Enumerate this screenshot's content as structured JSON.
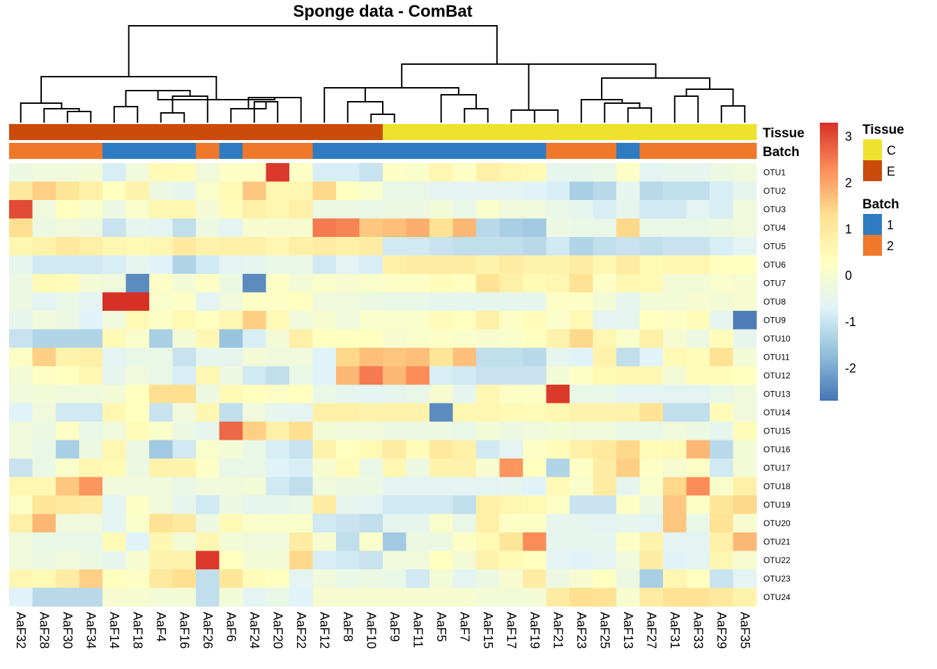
{
  "chart_data": {
    "type": "heatmap",
    "title": "Sponge data - ComBat",
    "columns": [
      "AaF32",
      "AaF28",
      "AaF30",
      "AaF34",
      "AaF14",
      "AaF18",
      "AaF4",
      "AaF16",
      "AaF26",
      "AaF6",
      "AaF24",
      "AaF20",
      "AaF22",
      "AaF12",
      "AaF8",
      "AaF10",
      "AaF9",
      "AaF11",
      "AaF5",
      "AaF7",
      "AaF15",
      "AaF17",
      "AaF19",
      "AaF21",
      "AaF23",
      "AaF25",
      "AaF13",
      "AaF27",
      "AaF31",
      "AaF33",
      "AaF29",
      "AaF35"
    ],
    "rows": [
      "OTU1",
      "OTU2",
      "OTU3",
      "OTU4",
      "OTU5",
      "OTU6",
      "OTU7",
      "OTU8",
      "OTU9",
      "OTU10",
      "OTU11",
      "OTU12",
      "OTU13",
      "OTU14",
      "OTU15",
      "OTU16",
      "OTU17",
      "OTU18",
      "OTU19",
      "OTU20",
      "OTU21",
      "OTU22",
      "OTU23",
      "OTU24"
    ],
    "values": [
      [
        -0.3,
        -0.2,
        -0.2,
        -0.1,
        -0.8,
        -0.2,
        0.5,
        0.4,
        -0.2,
        0.2,
        0.2,
        3.2,
        0.2,
        -0.8,
        -0.8,
        -1.0,
        0.2,
        0.1,
        0.6,
        0.2,
        0.8,
        0.6,
        0.5,
        -0.5,
        -0.5,
        -0.4,
        0.2,
        -0.6,
        -0.5,
        -0.5,
        -0.3,
        -0.2
      ],
      [
        1.0,
        1.5,
        1.1,
        0.8,
        0.3,
        0.7,
        -0.3,
        -0.5,
        0.1,
        0.5,
        1.6,
        0.6,
        0.6,
        1.4,
        0.3,
        0.1,
        -0.4,
        -0.4,
        -0.6,
        -0.6,
        -0.6,
        -0.6,
        -0.7,
        -0.8,
        -1.4,
        -1.2,
        -0.5,
        -1.2,
        -1.1,
        -1.1,
        -0.8,
        -0.5
      ],
      [
        3.0,
        -0.2,
        0.3,
        0.1,
        -0.3,
        0.1,
        0.6,
        0.6,
        -0.1,
        0.4,
        0.8,
        0.6,
        0.8,
        -0.3,
        -0.3,
        -0.4,
        -0.3,
        -0.3,
        -0.1,
        -0.4,
        0.1,
        -0.2,
        -0.2,
        -0.4,
        -0.5,
        -0.8,
        -0.5,
        -0.9,
        -0.9,
        -0.6,
        -0.8,
        -0.2
      ],
      [
        1.3,
        -0.3,
        -0.2,
        -0.3,
        -1.0,
        -0.5,
        -0.6,
        -1.1,
        -0.3,
        -0.6,
        0.0,
        0.0,
        0.0,
        2.5,
        2.4,
        1.6,
        1.7,
        1.9,
        1.2,
        1.8,
        -1.2,
        -1.4,
        -1.5,
        -0.3,
        -0.4,
        -0.4,
        1.4,
        -0.4,
        -0.4,
        -0.4,
        -0.3,
        -0.2
      ],
      [
        0.6,
        0.7,
        1.0,
        0.8,
        0.6,
        0.5,
        0.6,
        1.0,
        0.7,
        0.8,
        0.8,
        0.6,
        0.8,
        0.9,
        0.8,
        0.9,
        -0.9,
        -0.9,
        -1.0,
        -1.1,
        -1.1,
        -1.1,
        -1.2,
        -0.9,
        -1.3,
        -1.1,
        -1.0,
        -1.1,
        -1.0,
        -1.0,
        -0.8,
        -0.6
      ],
      [
        -0.5,
        -0.9,
        -0.9,
        -0.9,
        -0.8,
        -0.5,
        -0.7,
        -1.3,
        -0.9,
        -0.6,
        -0.5,
        -0.4,
        -0.4,
        -0.9,
        -0.6,
        -0.8,
        0.8,
        0.9,
        0.9,
        0.9,
        0.7,
        0.9,
        0.7,
        0.7,
        0.9,
        0.6,
        0.9,
        0.5,
        0.6,
        0.6,
        0.3,
        0.3
      ],
      [
        -0.3,
        0.5,
        0.4,
        -0.1,
        -0.2,
        -2.4,
        0.2,
        -0.1,
        0.2,
        -0.3,
        -2.4,
        0.2,
        -0.1,
        0.1,
        0.0,
        0.1,
        0.2,
        0.2,
        0.4,
        0.3,
        1.2,
        0.8,
        0.5,
        0.6,
        1.2,
        0.2,
        0.6,
        0.5,
        -0.1,
        -0.1,
        0.1,
        0.0
      ],
      [
        -0.3,
        -0.6,
        -0.4,
        -0.6,
        3.3,
        3.3,
        0.1,
        0.2,
        -0.6,
        -0.2,
        0.2,
        0.2,
        0.3,
        -0.2,
        -0.2,
        -0.3,
        -0.4,
        -0.4,
        -0.5,
        -0.5,
        -0.5,
        -0.5,
        -0.5,
        0.2,
        0.2,
        -0.1,
        -0.5,
        -0.1,
        -0.1,
        0.0,
        -0.1,
        0.0
      ],
      [
        -0.5,
        -0.2,
        -0.3,
        -0.7,
        -0.2,
        0.5,
        0.2,
        0.5,
        0.3,
        0.6,
        1.5,
        0.5,
        -0.2,
        0.0,
        -0.2,
        0.1,
        0.1,
        0.1,
        0.4,
        0.3,
        0.8,
        0.2,
        0.4,
        0.1,
        0.5,
        -0.6,
        -0.5,
        0.3,
        0.2,
        0.4,
        -0.5,
        -2.6
      ],
      [
        -1.0,
        -1.3,
        -1.3,
        -1.3,
        0.5,
        0.1,
        -1.4,
        -0.1,
        0.6,
        -1.6,
        -0.8,
        -0.1,
        0.8,
        0.3,
        0.3,
        0.3,
        0.0,
        0.1,
        0.2,
        0.1,
        0.0,
        0.1,
        0.3,
        0.7,
        1.4,
        0.6,
        0.1,
        0.8,
        0.0,
        -0.3,
        0.4,
        -0.5
      ],
      [
        0.2,
        1.5,
        0.7,
        0.8,
        -0.6,
        -0.4,
        -0.4,
        -1.0,
        -0.5,
        -0.5,
        -0.1,
        -0.2,
        -0.2,
        -0.7,
        1.4,
        1.7,
        1.6,
        1.7,
        1.1,
        1.7,
        -1.1,
        -1.1,
        -1.2,
        -0.5,
        -0.7,
        0.7,
        -1.1,
        -0.7,
        0.5,
        0.4,
        1.2,
        -0.1
      ],
      [
        -0.1,
        0.2,
        0.3,
        0.6,
        -0.5,
        -0.2,
        -0.4,
        -0.8,
        0.6,
        -0.3,
        -0.9,
        -1.1,
        -0.4,
        -0.7,
        1.8,
        2.5,
        1.8,
        2.3,
        -0.8,
        -0.9,
        -1.0,
        -1.0,
        -1.0,
        -0.1,
        0.2,
        0.5,
        0.6,
        0.6,
        -0.1,
        0.4,
        0.4,
        0.3
      ],
      [
        -0.2,
        -0.1,
        -0.2,
        -0.2,
        -0.1,
        0.3,
        1.3,
        1.3,
        -0.3,
        0.5,
        0.3,
        0.2,
        0.3,
        -0.4,
        -0.5,
        -0.6,
        -0.5,
        -0.4,
        0.0,
        -0.5,
        0.6,
        0.2,
        0.2,
        3.2,
        -0.4,
        -0.4,
        -0.6,
        -0.6,
        -0.6,
        -0.6,
        -0.4,
        -0.2
      ],
      [
        -0.7,
        -0.2,
        -0.9,
        -0.9,
        0.6,
        0.3,
        -1.0,
        -0.2,
        0.6,
        -1.1,
        -0.2,
        -0.5,
        -0.6,
        0.8,
        0.8,
        0.7,
        0.7,
        0.7,
        -2.4,
        0.6,
        0.6,
        0.5,
        0.4,
        0.6,
        0.7,
        0.7,
        0.7,
        1.2,
        -1.1,
        -1.1,
        0.4,
        -0.2
      ],
      [
        -0.2,
        -0.3,
        0.2,
        -0.4,
        -0.2,
        0.4,
        0.1,
        -0.3,
        -0.5,
        2.7,
        1.5,
        0.8,
        1.3,
        -0.1,
        -0.2,
        -0.2,
        -0.3,
        -0.3,
        -0.3,
        -0.4,
        -0.1,
        -0.3,
        -0.2,
        -0.1,
        -0.2,
        -0.2,
        -0.4,
        -0.4,
        -0.2,
        -0.3,
        -0.5,
        0.4
      ],
      [
        -0.2,
        -0.4,
        -1.4,
        -0.3,
        0.6,
        -0.3,
        -1.5,
        -0.9,
        0.1,
        -0.1,
        -0.4,
        -0.8,
        -1.0,
        0.7,
        0.3,
        0.5,
        0.9,
        0.4,
        1.0,
        0.8,
        -0.9,
        -0.6,
        0.2,
        0.4,
        0.8,
        1.0,
        1.4,
        0.4,
        0.5,
        1.8,
        -1.2,
        -0.1
      ],
      [
        -1.0,
        -0.4,
        0.1,
        0.6,
        0.5,
        -0.3,
        0.7,
        0.7,
        0.2,
        -0.4,
        -0.4,
        -0.7,
        -0.8,
        0.0,
        0.4,
        -0.4,
        0.6,
        -0.3,
        0.7,
        0.7,
        0.0,
        2.2,
        0.3,
        -1.3,
        0.2,
        0.9,
        1.5,
        0.2,
        0.0,
        0.2,
        -0.9,
        -0.1
      ],
      [
        0.6,
        0.6,
        1.6,
        2.2,
        -0.2,
        -0.2,
        -0.2,
        -0.4,
        -0.2,
        -0.2,
        -0.1,
        -0.9,
        -1.1,
        -0.2,
        -0.3,
        -0.3,
        -0.6,
        -0.6,
        -0.6,
        -0.6,
        -0.6,
        -0.5,
        -0.7,
        0.5,
        0.1,
        0.9,
        -0.5,
        0.1,
        1.4,
        2.3,
        0.1,
        0.8
      ],
      [
        0.2,
        1.1,
        1.0,
        0.9,
        -0.6,
        0.2,
        -0.2,
        -0.5,
        -0.9,
        -0.3,
        -0.5,
        -0.5,
        -0.4,
        0.9,
        -0.5,
        -0.6,
        -0.9,
        -0.9,
        -0.9,
        -1.1,
        0.8,
        0.6,
        0.5,
        0.2,
        -1.0,
        -1.0,
        0.2,
        -0.3,
        1.6,
        0.2,
        1.1,
        1.4
      ],
      [
        0.8,
        1.8,
        -0.2,
        -0.2,
        -0.6,
        0.1,
        1.2,
        1.0,
        -0.3,
        0.5,
        0.1,
        0.1,
        0.1,
        -0.9,
        -1.0,
        -1.1,
        -0.5,
        -0.5,
        0.1,
        -0.4,
        0.8,
        0.2,
        0.2,
        -0.5,
        -0.5,
        -0.6,
        -0.5,
        -0.6,
        1.6,
        -0.4,
        1.2,
        0.0
      ],
      [
        -0.2,
        -0.4,
        -0.4,
        -0.4,
        0.5,
        -0.7,
        0.6,
        -0.1,
        0.6,
        -0.1,
        -0.2,
        -0.2,
        0.9,
        0.0,
        -1.1,
        0.1,
        -1.5,
        -0.3,
        -0.3,
        0.2,
        0.5,
        1.1,
        2.3,
        -0.5,
        -0.5,
        -0.5,
        0.2,
        0.7,
        -0.6,
        -0.6,
        0.8,
        1.8
      ],
      [
        -0.2,
        -0.3,
        -0.2,
        -0.3,
        -0.5,
        0.0,
        0.7,
        0.7,
        3.2,
        0.3,
        -0.1,
        -0.1,
        1.4,
        -0.8,
        -0.9,
        -1.0,
        -0.2,
        -0.2,
        0.3,
        -0.1,
        0.7,
        0.5,
        0.3,
        -0.6,
        -0.7,
        -0.6,
        -0.2,
        0.9,
        -0.7,
        -0.6,
        0.6,
        0.0
      ],
      [
        0.6,
        0.5,
        0.9,
        1.5,
        0.3,
        0.2,
        1.0,
        1.3,
        -1.1,
        1.1,
        0.4,
        0.3,
        -0.6,
        -0.2,
        -0.4,
        -0.3,
        -0.4,
        -0.9,
        -0.1,
        -0.6,
        -0.3,
        0.0,
        0.9,
        -0.3,
        0.0,
        0.3,
        -0.3,
        -1.4,
        0.6,
        0.3,
        -1.0,
        -0.6
      ],
      [
        -0.7,
        -1.2,
        -1.2,
        -1.2,
        0.0,
        0.0,
        -0.1,
        -0.1,
        -1.1,
        -0.1,
        -0.6,
        -0.4,
        -0.7,
        0.0,
        0.0,
        0.0,
        0.0,
        0.0,
        0.0,
        0.0,
        -0.1,
        -0.1,
        -0.1,
        0.9,
        1.3,
        1.2,
        0.0,
        0.9,
        1.2,
        1.2,
        1.0,
        0.7
      ]
    ],
    "annotations": {
      "Tissue": [
        "E",
        "E",
        "E",
        "E",
        "E",
        "E",
        "E",
        "E",
        "E",
        "E",
        "E",
        "E",
        "E",
        "E",
        "E",
        "E",
        "C",
        "C",
        "C",
        "C",
        "C",
        "C",
        "C",
        "C",
        "C",
        "C",
        "C",
        "C",
        "C",
        "C",
        "C",
        "C"
      ],
      "Batch": [
        "2",
        "2",
        "2",
        "2",
        "1",
        "1",
        "1",
        "1",
        "2",
        "1",
        "2",
        "2",
        "2",
        "1",
        "1",
        "1",
        "1",
        "1",
        "1",
        "1",
        "1",
        "1",
        "1",
        "2",
        "2",
        "2",
        "1",
        "2",
        "2",
        "2",
        "2",
        "2"
      ]
    },
    "annotation_labels": [
      "Tissue",
      "Batch"
    ],
    "annotation_colors": {
      "Tissue": {
        "C": "#efe22e",
        "E": "#cb4b0a"
      },
      "Batch": {
        "1": "#2f7bc1",
        "2": "#f0782b"
      }
    },
    "legend": [
      {
        "title": "Tissue",
        "entries": [
          {
            "label": "C",
            "color": "#efe22e"
          },
          {
            "label": "E",
            "color": "#cb4b0a"
          }
        ]
      },
      {
        "title": "Batch",
        "entries": [
          {
            "label": "1",
            "color": "#2f7bc1"
          },
          {
            "label": "2",
            "color": "#f0782b"
          }
        ]
      }
    ],
    "color_scale": {
      "range": [
        -2.7,
        3.3
      ],
      "ticks": [
        "3",
        "2",
        "1",
        "0",
        "-1",
        "-2"
      ],
      "tick_values": [
        3,
        2,
        1,
        0,
        -1,
        -2
      ],
      "colors": [
        "#4575b4",
        "#91bfdb",
        "#e0f3f8",
        "#ffffbf",
        "#fee090",
        "#fc8d59",
        "#d73027"
      ]
    },
    "dendrogram": {
      "merges": [
        [
          3,
          4,
          0.5
        ],
        [
          5,
          6,
          0.5
        ],
        [
          7,
          8,
          0.45
        ],
        [
          10,
          11,
          0.4
        ],
        [
          12,
          13,
          0.35
        ],
        [
          14,
          15,
          0.55
        ],
        [
          16,
          17,
          0.6
        ],
        [
          18,
          19,
          0.4
        ],
        [
          20,
          21,
          0.65
        ],
        [
          22,
          23,
          0.6
        ],
        [
          24,
          25,
          0.5
        ],
        [
          26,
          27,
          0.6
        ],
        [
          28,
          29,
          0.4
        ],
        [
          30,
          31,
          0.45
        ]
      ]
    }
  }
}
